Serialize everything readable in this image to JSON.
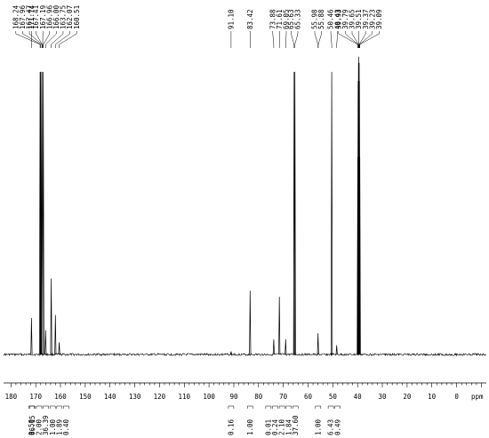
{
  "chart_data": {
    "type": "line",
    "title": "",
    "xlabel": "ppm",
    "ylabel": "",
    "xlim": [
      183,
      -12
    ],
    "x_reversed": true,
    "grid": false,
    "x_ticks": [
      {
        "value": 180,
        "label": "180"
      },
      {
        "value": 170,
        "label": "170"
      },
      {
        "value": 160,
        "label": "160"
      },
      {
        "value": 150,
        "label": "150"
      },
      {
        "value": 140,
        "label": "140"
      },
      {
        "value": 130,
        "label": "130"
      },
      {
        "value": 120,
        "label": "120"
      },
      {
        "value": 110,
        "label": "110"
      },
      {
        "value": 100,
        "label": "100"
      },
      {
        "value": 90,
        "label": "90"
      },
      {
        "value": 80,
        "label": "80"
      },
      {
        "value": 70,
        "label": "70"
      },
      {
        "value": 60,
        "label": "60"
      },
      {
        "value": 50,
        "label": "50"
      },
      {
        "value": 40,
        "label": "40"
      },
      {
        "value": 30,
        "label": "30"
      },
      {
        "value": 20,
        "label": "20"
      },
      {
        "value": 10,
        "label": "10"
      },
      {
        "value": 0,
        "label": "0"
      }
    ],
    "peak_labels": [
      {
        "ppm": 171.74,
        "label": "171.74"
      },
      {
        "ppm": 168.24,
        "label": "168.24"
      },
      {
        "ppm": 167.96,
        "label": "167.96"
      },
      {
        "ppm": 167.47,
        "label": "167.47"
      },
      {
        "ppm": 167.41,
        "label": "167.41"
      },
      {
        "ppm": 167.19,
        "label": "167.19"
      },
      {
        "ppm": 166.96,
        "label": "166.96"
      },
      {
        "ppm": 166.0,
        "label": "166.00"
      },
      {
        "ppm": 163.75,
        "label": "163.75"
      },
      {
        "ppm": 162.07,
        "label": "162.07"
      },
      {
        "ppm": 160.51,
        "label": "160.51"
      },
      {
        "ppm": 91.1,
        "label": "91.10"
      },
      {
        "ppm": 83.42,
        "label": "83.42"
      },
      {
        "ppm": 73.88,
        "label": "73.88"
      },
      {
        "ppm": 71.61,
        "label": "71.61"
      },
      {
        "ppm": 69.05,
        "label": "69.05"
      },
      {
        "ppm": 65.63,
        "label": "65.63"
      },
      {
        "ppm": 65.33,
        "label": "65.33"
      },
      {
        "ppm": 55.98,
        "label": "55.98"
      },
      {
        "ppm": 55.88,
        "label": "55.88"
      },
      {
        "ppm": 50.46,
        "label": "50.46"
      },
      {
        "ppm": 48.43,
        "label": "48.43"
      },
      {
        "ppm": 39.93,
        "label": "39.93"
      },
      {
        "ppm": 39.79,
        "label": "39.79"
      },
      {
        "ppm": 39.65,
        "label": "39.65"
      },
      {
        "ppm": 39.51,
        "label": "39.51"
      },
      {
        "ppm": 39.37,
        "label": "39.37"
      },
      {
        "ppm": 39.23,
        "label": "39.23"
      },
      {
        "ppm": 39.09,
        "label": "39.09"
      }
    ],
    "integrals": [
      {
        "ppm": 171.74,
        "label": "0.50"
      },
      {
        "ppm": 167.8,
        "label": "86.15"
      },
      {
        "ppm": 167.2,
        "label": "2.00"
      },
      {
        "ppm": 166.0,
        "label": "36.39"
      },
      {
        "ppm": 163.75,
        "label": "1.00"
      },
      {
        "ppm": 162.07,
        "label": "1.89"
      },
      {
        "ppm": 160.51,
        "label": "0.40"
      },
      {
        "ppm": 91.1,
        "label": "0.16"
      },
      {
        "ppm": 83.42,
        "label": "1.00"
      },
      {
        "ppm": 73.88,
        "label": "0.01"
      },
      {
        "ppm": 72.8,
        "label": "0.24"
      },
      {
        "ppm": 71.61,
        "label": "2.10"
      },
      {
        "ppm": 69.05,
        "label": "1.84"
      },
      {
        "ppm": 65.5,
        "label": "37.60"
      },
      {
        "ppm": 55.93,
        "label": "1.00"
      },
      {
        "ppm": 50.46,
        "label": "6.43"
      },
      {
        "ppm": 48.43,
        "label": "0.49"
      }
    ],
    "peaks": [
      {
        "ppm": 171.74,
        "height": 0.12
      },
      {
        "ppm": 168.24,
        "height": 0.93
      },
      {
        "ppm": 167.96,
        "height": 0.93
      },
      {
        "ppm": 167.47,
        "height": 0.93
      },
      {
        "ppm": 166.96,
        "height": 0.93
      },
      {
        "ppm": 166.0,
        "height": 0.08
      },
      {
        "ppm": 163.75,
        "height": 0.25
      },
      {
        "ppm": 162.07,
        "height": 0.13
      },
      {
        "ppm": 160.51,
        "height": 0.04
      },
      {
        "ppm": 91.1,
        "height": 0.01
      },
      {
        "ppm": 83.42,
        "height": 0.21
      },
      {
        "ppm": 73.88,
        "height": 0.05
      },
      {
        "ppm": 71.61,
        "height": 0.19
      },
      {
        "ppm": 69.05,
        "height": 0.05
      },
      {
        "ppm": 65.63,
        "height": 0.93
      },
      {
        "ppm": 65.33,
        "height": 0.93
      },
      {
        "ppm": 55.98,
        "height": 0.07
      },
      {
        "ppm": 50.46,
        "height": 0.93
      },
      {
        "ppm": 48.43,
        "height": 0.03
      },
      {
        "ppm": 39.93,
        "height": 0.65
      },
      {
        "ppm": 39.79,
        "height": 0.9
      },
      {
        "ppm": 39.65,
        "height": 0.96
      },
      {
        "ppm": 39.51,
        "height": 0.98
      },
      {
        "ppm": 39.37,
        "height": 0.96
      },
      {
        "ppm": 39.23,
        "height": 0.9
      },
      {
        "ppm": 39.09,
        "height": 0.65
      }
    ]
  }
}
